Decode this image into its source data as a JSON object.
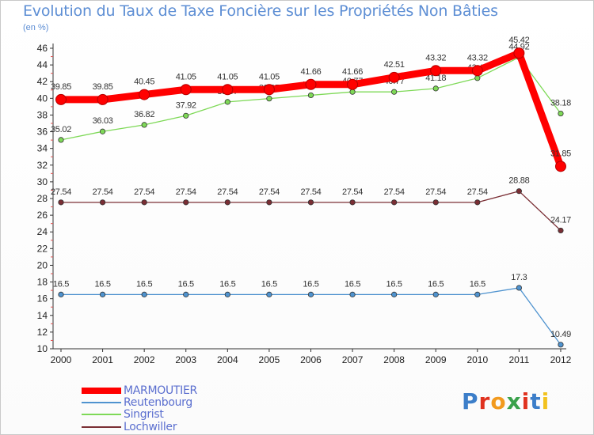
{
  "header": {
    "title": "Evolution du Taux de Taxe Foncière sur les Propriétés Non Bâties",
    "unit": "(en %)"
  },
  "chart_data": {
    "type": "line",
    "title": "Evolution du Taux de Taxe Foncière sur les Propriétés Non Bâties",
    "ylabel": "(en %)",
    "xlabel": "",
    "categories": [
      "2000",
      "2001",
      "2002",
      "2003",
      "2004",
      "2005",
      "2006",
      "2007",
      "2008",
      "2009",
      "2010",
      "2011",
      "2012"
    ],
    "ylim": [
      10,
      46
    ],
    "yticks": [
      10,
      12,
      14,
      16,
      18,
      20,
      22,
      24,
      26,
      28,
      30,
      32,
      34,
      36,
      38,
      40,
      42,
      44,
      46
    ],
    "grid": false,
    "legend_position": "bottom-left",
    "series": [
      {
        "name": "MARMOUTIER",
        "color": "#ff0000",
        "emphasis": true,
        "values": [
          39.85,
          39.85,
          40.45,
          41.05,
          41.05,
          41.05,
          41.66,
          41.66,
          42.51,
          43.32,
          43.32,
          45.42,
          31.85
        ],
        "labels": [
          "39.85",
          "39.85",
          "40.45",
          "41.05",
          "41.05",
          "41.05",
          "41.66",
          "41.66",
          "42.51",
          "43.32",
          "43.32",
          "45.42",
          "31.85"
        ]
      },
      {
        "name": "Reutenbourg",
        "color": "#4f93cf",
        "values": [
          16.5,
          16.5,
          16.5,
          16.5,
          16.5,
          16.5,
          16.5,
          16.5,
          16.5,
          16.5,
          16.5,
          17.3,
          10.49
        ],
        "labels": [
          "16.5",
          "16.5",
          "16.5",
          "16.5",
          "16.5",
          "16.5",
          "16.5",
          "16.5",
          "16.5",
          "16.5",
          "16.5",
          "17.3",
          "10.49"
        ]
      },
      {
        "name": "Singrist",
        "color": "#7ed957",
        "values": [
          35.02,
          36.03,
          36.82,
          37.92,
          39.57,
          39.97,
          40.37,
          40.77,
          40.77,
          41.18,
          42.42,
          44.92,
          38.18
        ],
        "labels": [
          "35.02",
          "36.03",
          "36.82",
          "37.92",
          "39.57",
          "39.97",
          "40.37",
          "40.77",
          "40.77",
          "41.18",
          "42.42",
          "44.92",
          "38.18"
        ]
      },
      {
        "name": "Lochwiller",
        "color": "#7a2e34",
        "values": [
          27.54,
          27.54,
          27.54,
          27.54,
          27.54,
          27.54,
          27.54,
          27.54,
          27.54,
          27.54,
          27.54,
          28.88,
          24.17
        ],
        "labels": [
          "27.54",
          "27.54",
          "27.54",
          "27.54",
          "27.54",
          "27.54",
          "27.54",
          "27.54",
          "27.54",
          "27.54",
          "27.54",
          "28.88",
          "24.17"
        ]
      }
    ]
  },
  "logo": {
    "letters": [
      "P",
      "r",
      "o",
      "x",
      "i",
      "t",
      "i"
    ],
    "colors": [
      "#3c7ec9",
      "#e0321f",
      "#f29a1e",
      "#3aa14b",
      "#e0321f",
      "#3c7ec9",
      "#f2c21e"
    ]
  }
}
